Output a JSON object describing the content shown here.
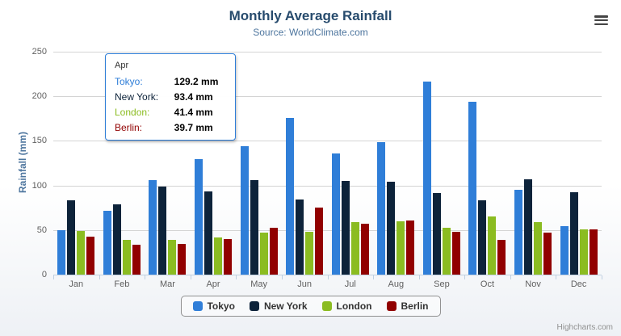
{
  "chart_data": {
    "type": "bar",
    "title": "Monthly Average Rainfall",
    "subtitle": "Source: WorldClimate.com",
    "ylabel": "Rainfall (mm)",
    "ylim": [
      0,
      250
    ],
    "yticks": [
      0,
      50,
      100,
      150,
      200,
      250
    ],
    "grid": true,
    "legend_position": "bottom",
    "categories": [
      "Jan",
      "Feb",
      "Mar",
      "Apr",
      "May",
      "Jun",
      "Jul",
      "Aug",
      "Sep",
      "Oct",
      "Nov",
      "Dec"
    ],
    "series": [
      {
        "name": "Tokyo",
        "color": "#2f7ed8",
        "values": [
          49.9,
          71.5,
          106.4,
          129.2,
          144.0,
          176.0,
          135.6,
          148.5,
          216.4,
          194.1,
          95.6,
          54.4
        ]
      },
      {
        "name": "New York",
        "color": "#0d233a",
        "values": [
          83.6,
          78.8,
          98.5,
          93.4,
          106.0,
          84.5,
          105.0,
          104.3,
          91.2,
          83.5,
          106.6,
          92.3
        ]
      },
      {
        "name": "London",
        "color": "#8bbc21",
        "values": [
          48.9,
          38.8,
          39.3,
          41.4,
          47.0,
          48.3,
          59.0,
          59.6,
          52.4,
          65.2,
          59.3,
          51.2
        ]
      },
      {
        "name": "Berlin",
        "color": "#910000",
        "values": [
          42.4,
          33.2,
          34.5,
          39.7,
          52.6,
          75.5,
          57.4,
          60.4,
          47.6,
          39.1,
          46.8,
          51.1
        ]
      }
    ]
  },
  "tooltip": {
    "category": "Apr",
    "rows": [
      {
        "label": "Tokyo:",
        "value": "129.2 mm",
        "color": "#2f7ed8"
      },
      {
        "label": "New York:",
        "value": "93.4 mm",
        "color": "#0d233a"
      },
      {
        "label": "London:",
        "value": "41.4 mm",
        "color": "#8bbc21"
      },
      {
        "label": "Berlin:",
        "value": "39.7 mm",
        "color": "#910000"
      }
    ]
  },
  "credits": {
    "label": "Highcharts.com"
  }
}
